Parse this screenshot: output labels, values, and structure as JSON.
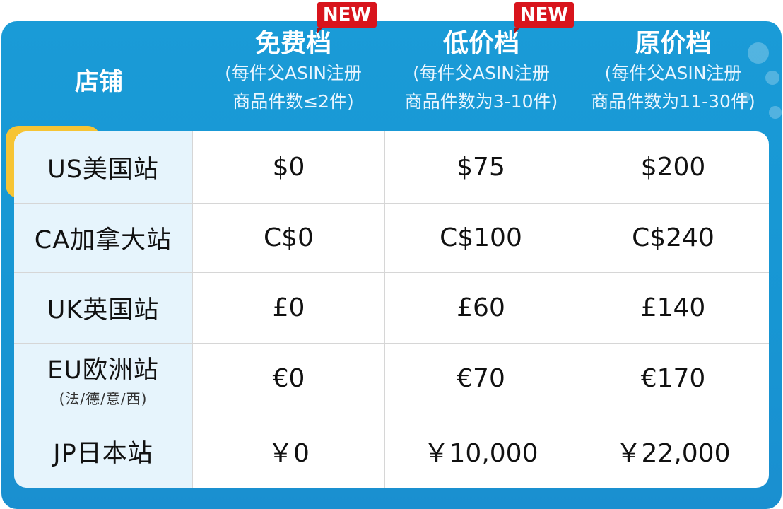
{
  "colors": {
    "panel": "#1a9bd7",
    "accent_yellow": "#f6c434",
    "badge": "#d8141c",
    "store_column_bg": "#e6f4fc"
  },
  "header": {
    "store_label": "店铺",
    "tiers": [
      {
        "title": "免费档",
        "desc_line1": "(每件父ASIN注册",
        "desc_line2": "商品件数≤2件)",
        "badge": "NEW"
      },
      {
        "title": "低价档",
        "desc_line1": "(每件父ASIN注册",
        "desc_line2": "商品件数为3-10件)",
        "badge": "NEW"
      },
      {
        "title": "原价档",
        "desc_line1": "(每件父ASIN注册",
        "desc_line2": "商品件数为11-30件)"
      }
    ]
  },
  "rows": [
    {
      "store": "US美国站",
      "prices": [
        "$0",
        "$75",
        "$200"
      ]
    },
    {
      "store": "CA加拿大站",
      "prices": [
        "C$0",
        "C$100",
        "C$240"
      ]
    },
    {
      "store": "UK英国站",
      "prices": [
        "£0",
        "£60",
        "£140"
      ]
    },
    {
      "store": "EU欧洲站",
      "note": "(法/德/意/西)",
      "prices": [
        "€0",
        "€70",
        "€170"
      ]
    },
    {
      "store": "JP日本站",
      "prices": [
        "￥0",
        "￥10,000",
        "￥22,000"
      ]
    }
  ]
}
